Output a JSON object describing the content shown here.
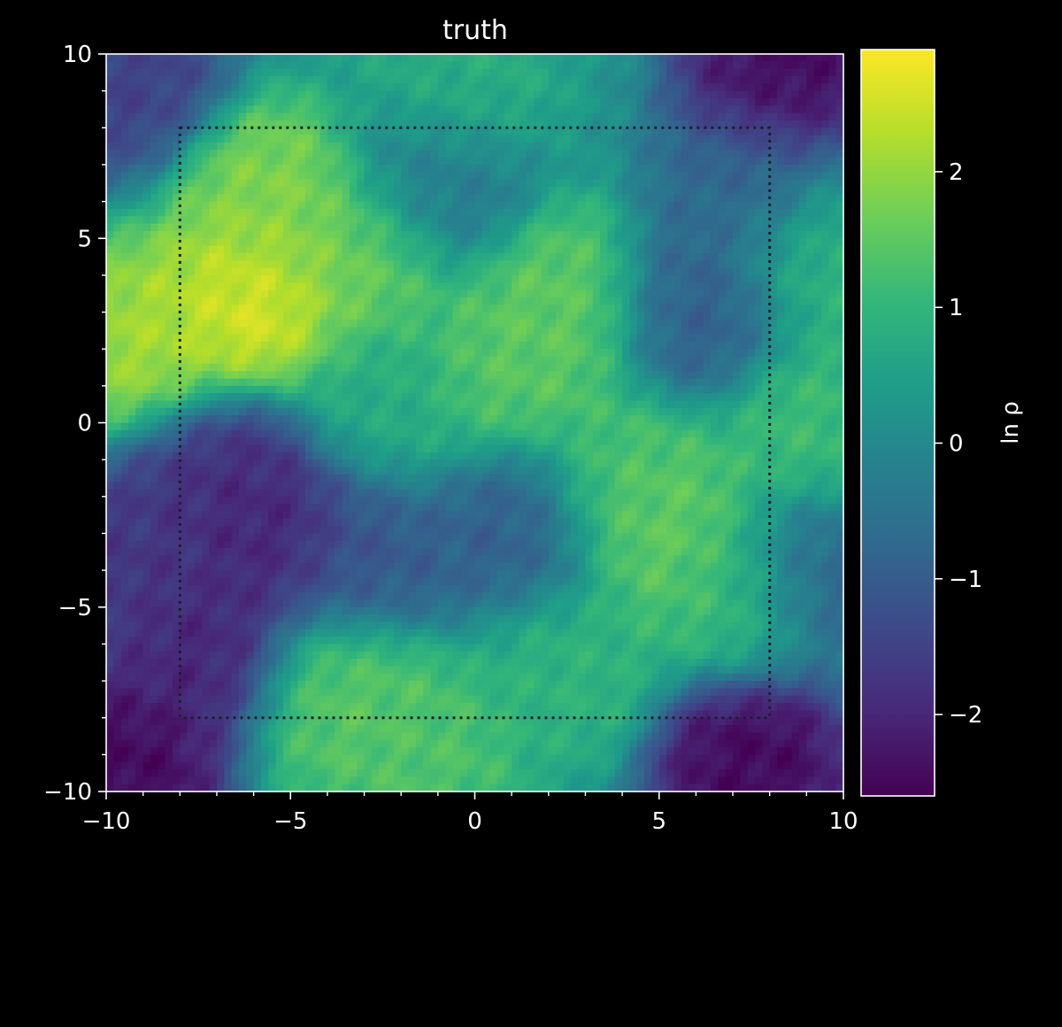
{
  "chart_data": {
    "type": "heatmap",
    "title": "truth",
    "xlabel": "",
    "ylabel": "",
    "xlim": [
      -10,
      10
    ],
    "ylim": [
      -10,
      10
    ],
    "x_ticks": [
      -10,
      -5,
      0,
      5,
      10
    ],
    "y_ticks": [
      -10,
      -5,
      0,
      5,
      10
    ],
    "x_tick_labels": [
      "−10",
      "−5",
      "0",
      "5",
      "10"
    ],
    "y_tick_labels": [
      "−10",
      "−5",
      "0",
      "5",
      "10"
    ],
    "grid": false,
    "colormap": "viridis",
    "colorbar": {
      "label": "ln ρ",
      "range": [
        -2.6,
        2.9
      ],
      "ticks": [
        -2,
        -1,
        0,
        1,
        2
      ],
      "tick_labels": [
        "−2",
        "−1",
        "0",
        "1",
        "2"
      ]
    },
    "region_box": {
      "style": "dotted",
      "x": [
        -8,
        8
      ],
      "y": [
        -8,
        8
      ]
    },
    "features": [
      {
        "x": -6.0,
        "y": 3.2,
        "value": 2.7
      },
      {
        "x": -5.5,
        "y": 6.0,
        "value": 1.9
      },
      {
        "x": -8.8,
        "y": 2.3,
        "value": 2.2
      },
      {
        "x": -3.0,
        "y": 4.5,
        "value": 1.7
      },
      {
        "x": 1.0,
        "y": 1.5,
        "value": 1.5
      },
      {
        "x": 2.4,
        "y": 3.2,
        "value": 1.6
      },
      {
        "x": 5.0,
        "y": -2.8,
        "value": 1.7
      },
      {
        "x": 4.2,
        "y": -1.5,
        "value": 1.3
      },
      {
        "x": 7.0,
        "y": -4.5,
        "value": 1.2
      },
      {
        "x": -3.5,
        "y": -7.5,
        "value": 1.5
      },
      {
        "x": -1.5,
        "y": -9.0,
        "value": 1.4
      },
      {
        "x": 9.0,
        "y": -0.3,
        "value": 1.2
      },
      {
        "x": 9.5,
        "y": 4.5,
        "value": 1.0
      },
      {
        "x": -0.5,
        "y": 9.0,
        "value": 0.9
      },
      {
        "x": 2.5,
        "y": -6.5,
        "value": 1.0
      },
      {
        "x": -2.5,
        "y": 0.5,
        "value": 0.8
      },
      {
        "x": -5.5,
        "y": -2.8,
        "value": -2.2
      },
      {
        "x": -6.8,
        "y": -1.5,
        "value": -1.9
      },
      {
        "x": -7.5,
        "y": -6.2,
        "value": -2.1
      },
      {
        "x": -9.5,
        "y": -9.3,
        "value": -2.6
      },
      {
        "x": 8.3,
        "y": 9.3,
        "value": -2.6
      },
      {
        "x": 7.5,
        "y": -9.3,
        "value": -2.6
      },
      {
        "x": -9.5,
        "y": 9.5,
        "value": -1.6
      },
      {
        "x": 1.2,
        "y": -3.0,
        "value": -1.0
      },
      {
        "x": 6.0,
        "y": 3.0,
        "value": -1.0
      },
      {
        "x": 7.5,
        "y": 6.5,
        "value": -0.8
      },
      {
        "x": -1.0,
        "y": 6.5,
        "value": -0.5
      },
      {
        "x": -9.3,
        "y": -3.8,
        "value": -1.8
      },
      {
        "x": -3.0,
        "y": -3.5,
        "value": -1.1
      },
      {
        "x": 9.3,
        "y": -4.0,
        "value": -0.9
      }
    ],
    "base_value": 0.2
  }
}
